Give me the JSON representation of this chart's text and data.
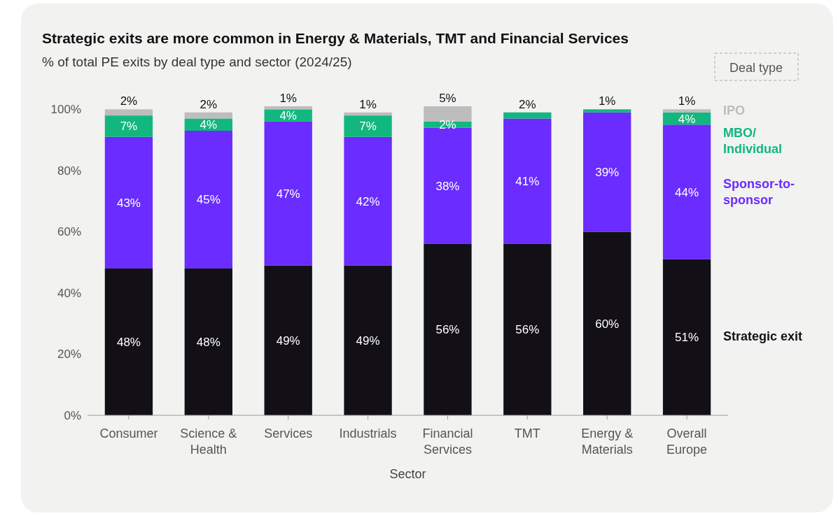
{
  "chart_data": {
    "type": "bar",
    "title": "Strategic exits are more common in Energy & Materials, TMT and Financial Services",
    "subtitle": "% of total PE exits by deal type and sector (2024/25)",
    "xlabel": "Sector",
    "legend_title": "Deal type",
    "categories": [
      "Consumer",
      "Science & Health",
      "Services",
      "Industrials",
      "Financial Services",
      "TMT",
      "Energy & Materials",
      "Overall Europe"
    ],
    "stacked": true,
    "legend": "right",
    "grid": false,
    "ylim": [
      0,
      101
    ],
    "yticks": [
      {
        "value": 0,
        "label": "0%"
      },
      {
        "value": 20,
        "label": "20%"
      },
      {
        "value": 40,
        "label": "40%"
      },
      {
        "value": 60,
        "label": "60%"
      },
      {
        "value": 80,
        "label": "80%"
      },
      {
        "value": 100,
        "label": "100%"
      }
    ],
    "series": [
      {
        "name": "Strategic exit",
        "color": "#121016",
        "values": [
          48,
          48,
          49,
          49,
          56,
          56,
          60,
          51
        ],
        "value_labels": [
          "48%",
          "48%",
          "49%",
          "49%",
          "56%",
          "56%",
          "60%",
          "51%"
        ]
      },
      {
        "name": "Sponsor-to-sponsor",
        "color": "#6a2cff",
        "values": [
          43,
          45,
          47,
          42,
          38,
          41,
          39,
          44
        ],
        "value_labels": [
          "43%",
          "45%",
          "47%",
          "42%",
          "38%",
          "41%",
          "39%",
          "44%"
        ]
      },
      {
        "name": "MBO/ Individual",
        "color": "#12b77f",
        "values": [
          7,
          4,
          4,
          7,
          2,
          2,
          1,
          4
        ],
        "value_labels": [
          "7%",
          "4%",
          "4%",
          "7%",
          "2%",
          "2%",
          "1%",
          "4%"
        ]
      },
      {
        "name": "IPO",
        "color": "#bdbdbd",
        "values": [
          2,
          2,
          1,
          1,
          5,
          null,
          null,
          1
        ],
        "value_labels": [
          "2%",
          "2%",
          "1%",
          "1%",
          "5%",
          null,
          null,
          "1%"
        ]
      }
    ]
  }
}
